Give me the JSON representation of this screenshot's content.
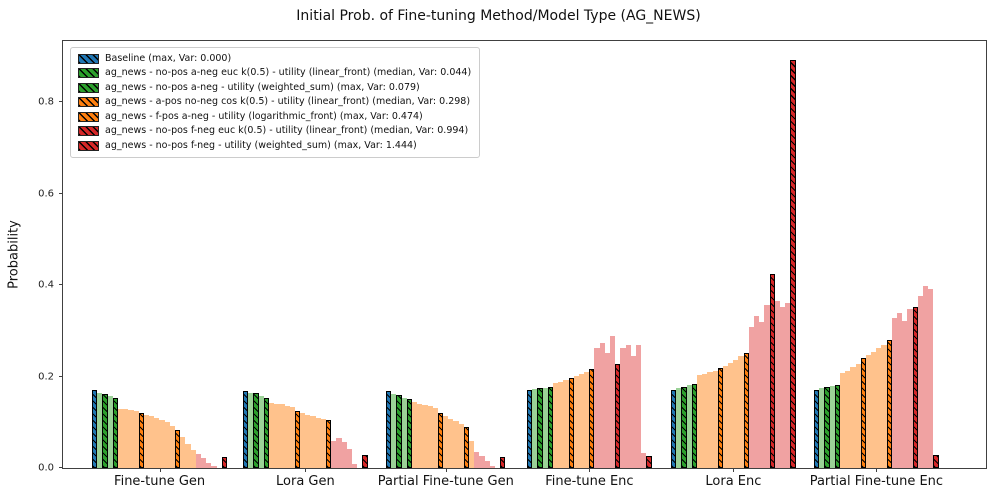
{
  "title": "Initial Prob. of Fine-tuning Method/Model Type (AG_NEWS)",
  "axes": {
    "ylabel": "Probability",
    "yticks": [
      "0.0",
      "0.2",
      "0.4",
      "0.6",
      "0.8"
    ]
  },
  "legend": {
    "position": "upper left",
    "items": [
      {
        "label": "Baseline (max, Var: 0.000)",
        "swatch": "bl"
      },
      {
        "label": "ag_news - no-pos a-neg euc  k(0.5) - utility (linear_front) (median, Var: 0.044)",
        "swatch": "gh"
      },
      {
        "label": "ag_news - no-pos a-neg - utility (weighted_sum) (max, Var: 0.079)",
        "swatch": "gh"
      },
      {
        "label": "ag_news - a-pos no-neg cos  k(0.5) - utility (linear_front) (median, Var: 0.298)",
        "swatch": "oh"
      },
      {
        "label": "ag_news - f-pos a-neg - utility (logarithmic_front) (max, Var: 0.474)",
        "swatch": "oh"
      },
      {
        "label": "ag_news - no-pos f-neg euc  k(0.5) - utility (linear_front) (median, Var: 0.994)",
        "swatch": "rh"
      },
      {
        "label": "ag_news - no-pos f-neg - utility (weighted_sum) (max, Var: 1.444)",
        "swatch": "rh"
      }
    ]
  },
  "chart_data": {
    "type": "bar",
    "title": "Initial Prob. of Fine-tuning Method/Model Type (AG_NEWS)",
    "xlabel": "",
    "ylabel": "Probability",
    "ylim": [
      0,
      0.934
    ],
    "yticks": [
      0,
      0.2,
      0.4,
      0.6,
      0.8
    ],
    "grid": false,
    "legend_position": "upper left",
    "note": "Each group holds many thin bars; Gen groups sorted descending, Enc groups ascending. Hatched saturated bars are the highlighted legend runs; pale bars are other runs of the same family.",
    "categories": [
      "Fine-tune Gen",
      "Lora Gen",
      "Partial Fine-tune Gen",
      "Fine-tune Enc",
      "Lora Enc",
      "Partial Fine-tune Enc"
    ],
    "styles": {
      "bl": {
        "color": "#2077b4",
        "hatch": true,
        "name": "baseline-blue"
      },
      "gh": {
        "color": "#2ca02c",
        "hatch": true,
        "name": "green-highlight"
      },
      "gl": {
        "color": "#9bd297",
        "hatch": false,
        "name": "green-pale"
      },
      "oh": {
        "color": "#ff7f0e",
        "hatch": true,
        "name": "orange-highlight"
      },
      "ol": {
        "color": "#ffc28c",
        "hatch": false,
        "name": "orange-pale"
      },
      "rh": {
        "color": "#d62728",
        "hatch": true,
        "name": "red-highlight"
      },
      "rl": {
        "color": "#f0a2a2",
        "hatch": false,
        "name": "red-pale"
      },
      "gap": {
        "color": "none",
        "hatch": false,
        "name": "spacer"
      }
    },
    "groups": [
      {
        "label": "Fine-tune Gen",
        "bars": [
          [
            "bl",
            0.17
          ],
          [
            "gl",
            0.164
          ],
          [
            "gh",
            0.162
          ],
          [
            "gl",
            0.157
          ],
          [
            "gh",
            0.154
          ],
          [
            "ol",
            0.13
          ],
          [
            "ol",
            0.128
          ],
          [
            "ol",
            0.127
          ],
          [
            "ol",
            0.125
          ],
          [
            "oh",
            0.121
          ],
          [
            "ol",
            0.117
          ],
          [
            "ol",
            0.114
          ],
          [
            "ol",
            0.11
          ],
          [
            "ol",
            0.106
          ],
          [
            "ol",
            0.1
          ],
          [
            "ol",
            0.092
          ],
          [
            "oh",
            0.083
          ],
          [
            "ol",
            0.068
          ],
          [
            "ol",
            0.052
          ],
          [
            "ol",
            0.04
          ],
          [
            "rl",
            0.03
          ],
          [
            "rl",
            0.021
          ],
          [
            "rl",
            0.012
          ],
          [
            "rl",
            0.005
          ],
          [
            "gap",
            0
          ],
          [
            "rh",
            0.024
          ]
        ]
      },
      {
        "label": "Lora Gen",
        "bars": [
          [
            "bl",
            0.168
          ],
          [
            "gl",
            0.165
          ],
          [
            "gh",
            0.163
          ],
          [
            "gl",
            0.158
          ],
          [
            "gh",
            0.153
          ],
          [
            "ol",
            0.143
          ],
          [
            "ol",
            0.141
          ],
          [
            "ol",
            0.139
          ],
          [
            "ol",
            0.136
          ],
          [
            "ol",
            0.133
          ],
          [
            "oh",
            0.124
          ],
          [
            "ol",
            0.12
          ],
          [
            "ol",
            0.117
          ],
          [
            "ol",
            0.113
          ],
          [
            "ol",
            0.11
          ],
          [
            "ol",
            0.107
          ],
          [
            "oh",
            0.104
          ],
          [
            "rl",
            0.06
          ],
          [
            "rl",
            0.066
          ],
          [
            "rl",
            0.057
          ],
          [
            "rl",
            0.042
          ],
          [
            "rl",
            0.008
          ],
          [
            "gap",
            0
          ],
          [
            "rh",
            0.028
          ]
        ]
      },
      {
        "label": "Partial Fine-tune Gen",
        "bars": [
          [
            "bl",
            0.168
          ],
          [
            "gl",
            0.161
          ],
          [
            "gh",
            0.159
          ],
          [
            "gl",
            0.154
          ],
          [
            "gh",
            0.15
          ],
          [
            "ol",
            0.144
          ],
          [
            "ol",
            0.141
          ],
          [
            "ol",
            0.138
          ],
          [
            "ol",
            0.135
          ],
          [
            "ol",
            0.131
          ],
          [
            "oh",
            0.12
          ],
          [
            "ol",
            0.113
          ],
          [
            "ol",
            0.108
          ],
          [
            "ol",
            0.103
          ],
          [
            "ol",
            0.097
          ],
          [
            "oh",
            0.089
          ],
          [
            "ol",
            0.058
          ],
          [
            "rl",
            0.034
          ],
          [
            "rl",
            0.026
          ],
          [
            "rl",
            0.015
          ],
          [
            "rl",
            0.005
          ],
          [
            "gap",
            0
          ],
          [
            "rh",
            0.024
          ]
        ]
      },
      {
        "label": "Fine-tune Enc",
        "bars": [
          [
            "bl",
            0.17
          ],
          [
            "gl",
            0.172
          ],
          [
            "gh",
            0.174
          ],
          [
            "gl",
            0.176
          ],
          [
            "gh",
            0.178
          ],
          [
            "ol",
            0.186
          ],
          [
            "ol",
            0.189
          ],
          [
            "ol",
            0.192
          ],
          [
            "oh",
            0.197
          ],
          [
            "ol",
            0.201
          ],
          [
            "ol",
            0.206
          ],
          [
            "ol",
            0.211
          ],
          [
            "oh",
            0.216
          ],
          [
            "rl",
            0.262
          ],
          [
            "rl",
            0.274
          ],
          [
            "rl",
            0.252
          ],
          [
            "rl",
            0.288
          ],
          [
            "rh",
            0.228
          ],
          [
            "rl",
            0.263
          ],
          [
            "rl",
            0.27
          ],
          [
            "rl",
            0.245
          ],
          [
            "rl",
            0.268
          ],
          [
            "rl",
            0.032
          ],
          [
            "rh",
            0.026
          ]
        ]
      },
      {
        "label": "Lora Enc",
        "bars": [
          [
            "bl",
            0.17
          ],
          [
            "gl",
            0.175
          ],
          [
            "gh",
            0.178
          ],
          [
            "gl",
            0.181
          ],
          [
            "gh",
            0.184
          ],
          [
            "ol",
            0.203
          ],
          [
            "ol",
            0.206
          ],
          [
            "ol",
            0.21
          ],
          [
            "ol",
            0.213
          ],
          [
            "oh",
            0.218
          ],
          [
            "ol",
            0.224
          ],
          [
            "ol",
            0.23
          ],
          [
            "ol",
            0.237
          ],
          [
            "ol",
            0.244
          ],
          [
            "oh",
            0.251
          ],
          [
            "rl",
            0.308
          ],
          [
            "rl",
            0.332
          ],
          [
            "rl",
            0.32
          ],
          [
            "rl",
            0.356
          ],
          [
            "rh",
            0.425
          ],
          [
            "rl",
            0.365
          ],
          [
            "rl",
            0.352
          ],
          [
            "rl",
            0.362
          ],
          [
            "rh",
            0.893
          ]
        ]
      },
      {
        "label": "Partial Fine-tune Enc",
        "bars": [
          [
            "bl",
            0.171
          ],
          [
            "gl",
            0.174
          ],
          [
            "gh",
            0.177
          ],
          [
            "gl",
            0.18
          ],
          [
            "gh",
            0.182
          ],
          [
            "ol",
            0.207
          ],
          [
            "ol",
            0.213
          ],
          [
            "ol",
            0.22
          ],
          [
            "ol",
            0.228
          ],
          [
            "oh",
            0.24
          ],
          [
            "ol",
            0.247
          ],
          [
            "ol",
            0.254
          ],
          [
            "ol",
            0.262
          ],
          [
            "ol",
            0.27
          ],
          [
            "oh",
            0.279
          ],
          [
            "rl",
            0.328
          ],
          [
            "rl",
            0.34
          ],
          [
            "rl",
            0.322
          ],
          [
            "rl",
            0.348
          ],
          [
            "rh",
            0.352
          ],
          [
            "rl",
            0.377
          ],
          [
            "rl",
            0.399
          ],
          [
            "rl",
            0.392
          ],
          [
            "rh",
            0.028
          ]
        ]
      }
    ]
  }
}
